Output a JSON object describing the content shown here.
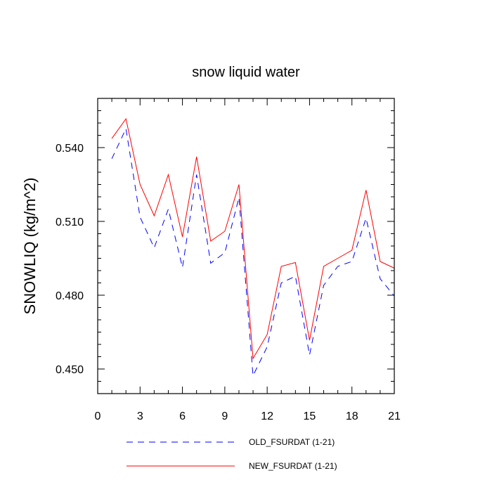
{
  "chart_data": {
    "type": "line",
    "title": "snow liquid water",
    "xlabel": "",
    "ylabel": "SNOWLIQ  (kg/m^2)",
    "xlim": [
      0,
      21
    ],
    "ylim": [
      0.44,
      0.56
    ],
    "x_ticks": [
      0,
      3,
      6,
      9,
      12,
      15,
      18,
      21
    ],
    "y_ticks": [
      0.45,
      0.48,
      0.51,
      0.54
    ],
    "x_tick_labels": [
      "0",
      "3",
      "6",
      "9",
      "12",
      "15",
      "18",
      "21"
    ],
    "y_tick_labels": [
      "0.450",
      "0.480",
      "0.510",
      "0.540"
    ],
    "grid": false,
    "legend_position": "bottom",
    "x": [
      1,
      2,
      3,
      4,
      5,
      6,
      7,
      8,
      9,
      10,
      11,
      12,
      13,
      14,
      15,
      16,
      17,
      18,
      19,
      20,
      21
    ],
    "series": [
      {
        "name": "OLD_FSURDAT (1-21)",
        "color": "#0000ff",
        "dash": "dashed",
        "values": [
          0.5355,
          0.5477,
          0.5117,
          0.4993,
          0.515,
          0.4913,
          0.529,
          0.493,
          0.4973,
          0.5197,
          0.4473,
          0.459,
          0.485,
          0.4877,
          0.4557,
          0.484,
          0.4917,
          0.4937,
          0.5113,
          0.4867,
          0.4797
        ]
      },
      {
        "name": "NEW_FSURDAT (1-21)",
        "color": "#ff0000",
        "dash": "solid",
        "values": [
          0.5437,
          0.5517,
          0.525,
          0.5123,
          0.529,
          0.5037,
          0.5363,
          0.502,
          0.506,
          0.525,
          0.4543,
          0.464,
          0.4917,
          0.4933,
          0.4617,
          0.4917,
          0.495,
          0.4983,
          0.5227,
          0.4937,
          0.491
        ]
      }
    ]
  }
}
